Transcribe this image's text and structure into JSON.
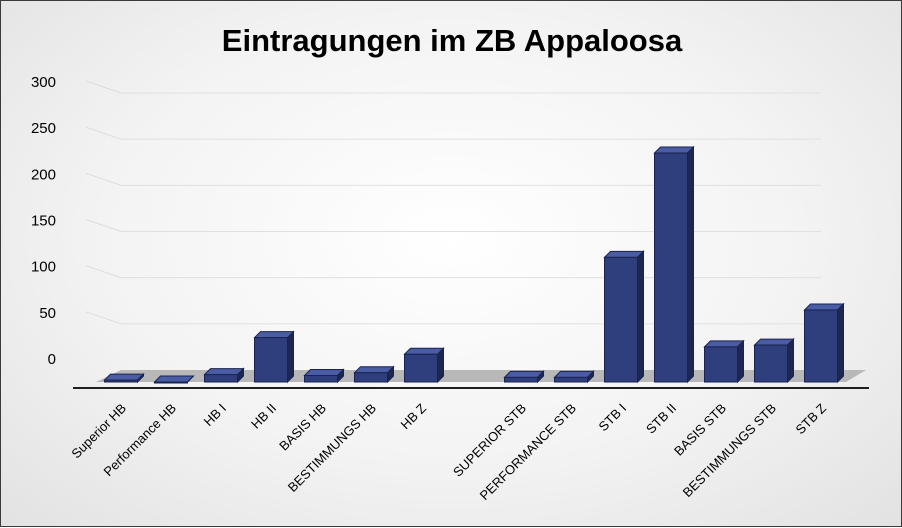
{
  "chart_data": {
    "type": "bar",
    "title": "Eintragungen im ZB Appaloosa",
    "xlabel": "",
    "ylabel": "",
    "ylim": [
      0,
      300
    ],
    "yticks": [
      0,
      50,
      100,
      150,
      200,
      250,
      300
    ],
    "categories": [
      "Superior HB",
      "Performance HB",
      "HB I",
      "HB II",
      "BASIS HB",
      "BESTIMMUNGS HB",
      "HB Z",
      "",
      "SUPERIOR STB",
      "PERFORMANCE STB",
      "STB I",
      "STB II",
      "BASIS STB",
      "BESTIMMUNGS STB",
      "STB Z"
    ],
    "values": [
      2,
      0,
      8,
      48,
      7,
      10,
      30,
      null,
      5,
      5,
      135,
      248,
      38,
      40,
      78
    ],
    "grid": true,
    "legend": "none",
    "colors": {
      "bar_front": "#2f3f7e",
      "bar_side": "#1d2852",
      "bar_top": "#4a5ca3",
      "edge": "#1a2350",
      "floor": "#b8b8b8",
      "axis": "#1f1f1f"
    }
  }
}
